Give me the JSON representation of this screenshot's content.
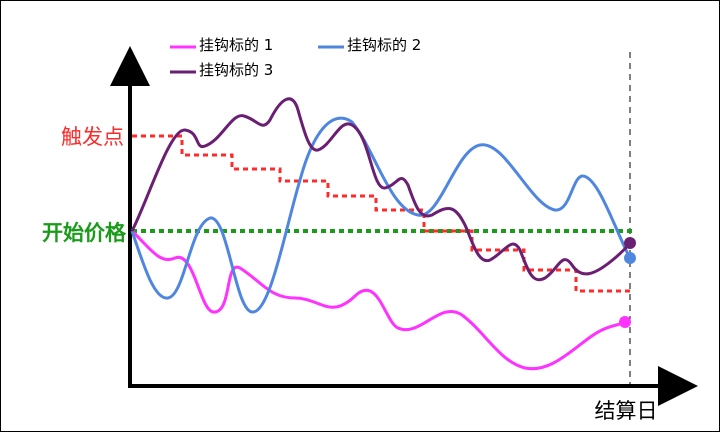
{
  "legend": [
    {
      "label": "挂钩标的 1",
      "color": "#ff33ff"
    },
    {
      "label": "挂钩标的 2",
      "color": "#4f86e0"
    },
    {
      "label": "挂钩标的 3",
      "color": "#6b1f73"
    }
  ],
  "labels": {
    "trigger": "触发点",
    "start_price": "开始价格",
    "settlement_day": "结算日"
  },
  "colors": {
    "trigger": "#ff2a2a",
    "start_price": "#1a9c1a",
    "axis": "#000000"
  }
}
